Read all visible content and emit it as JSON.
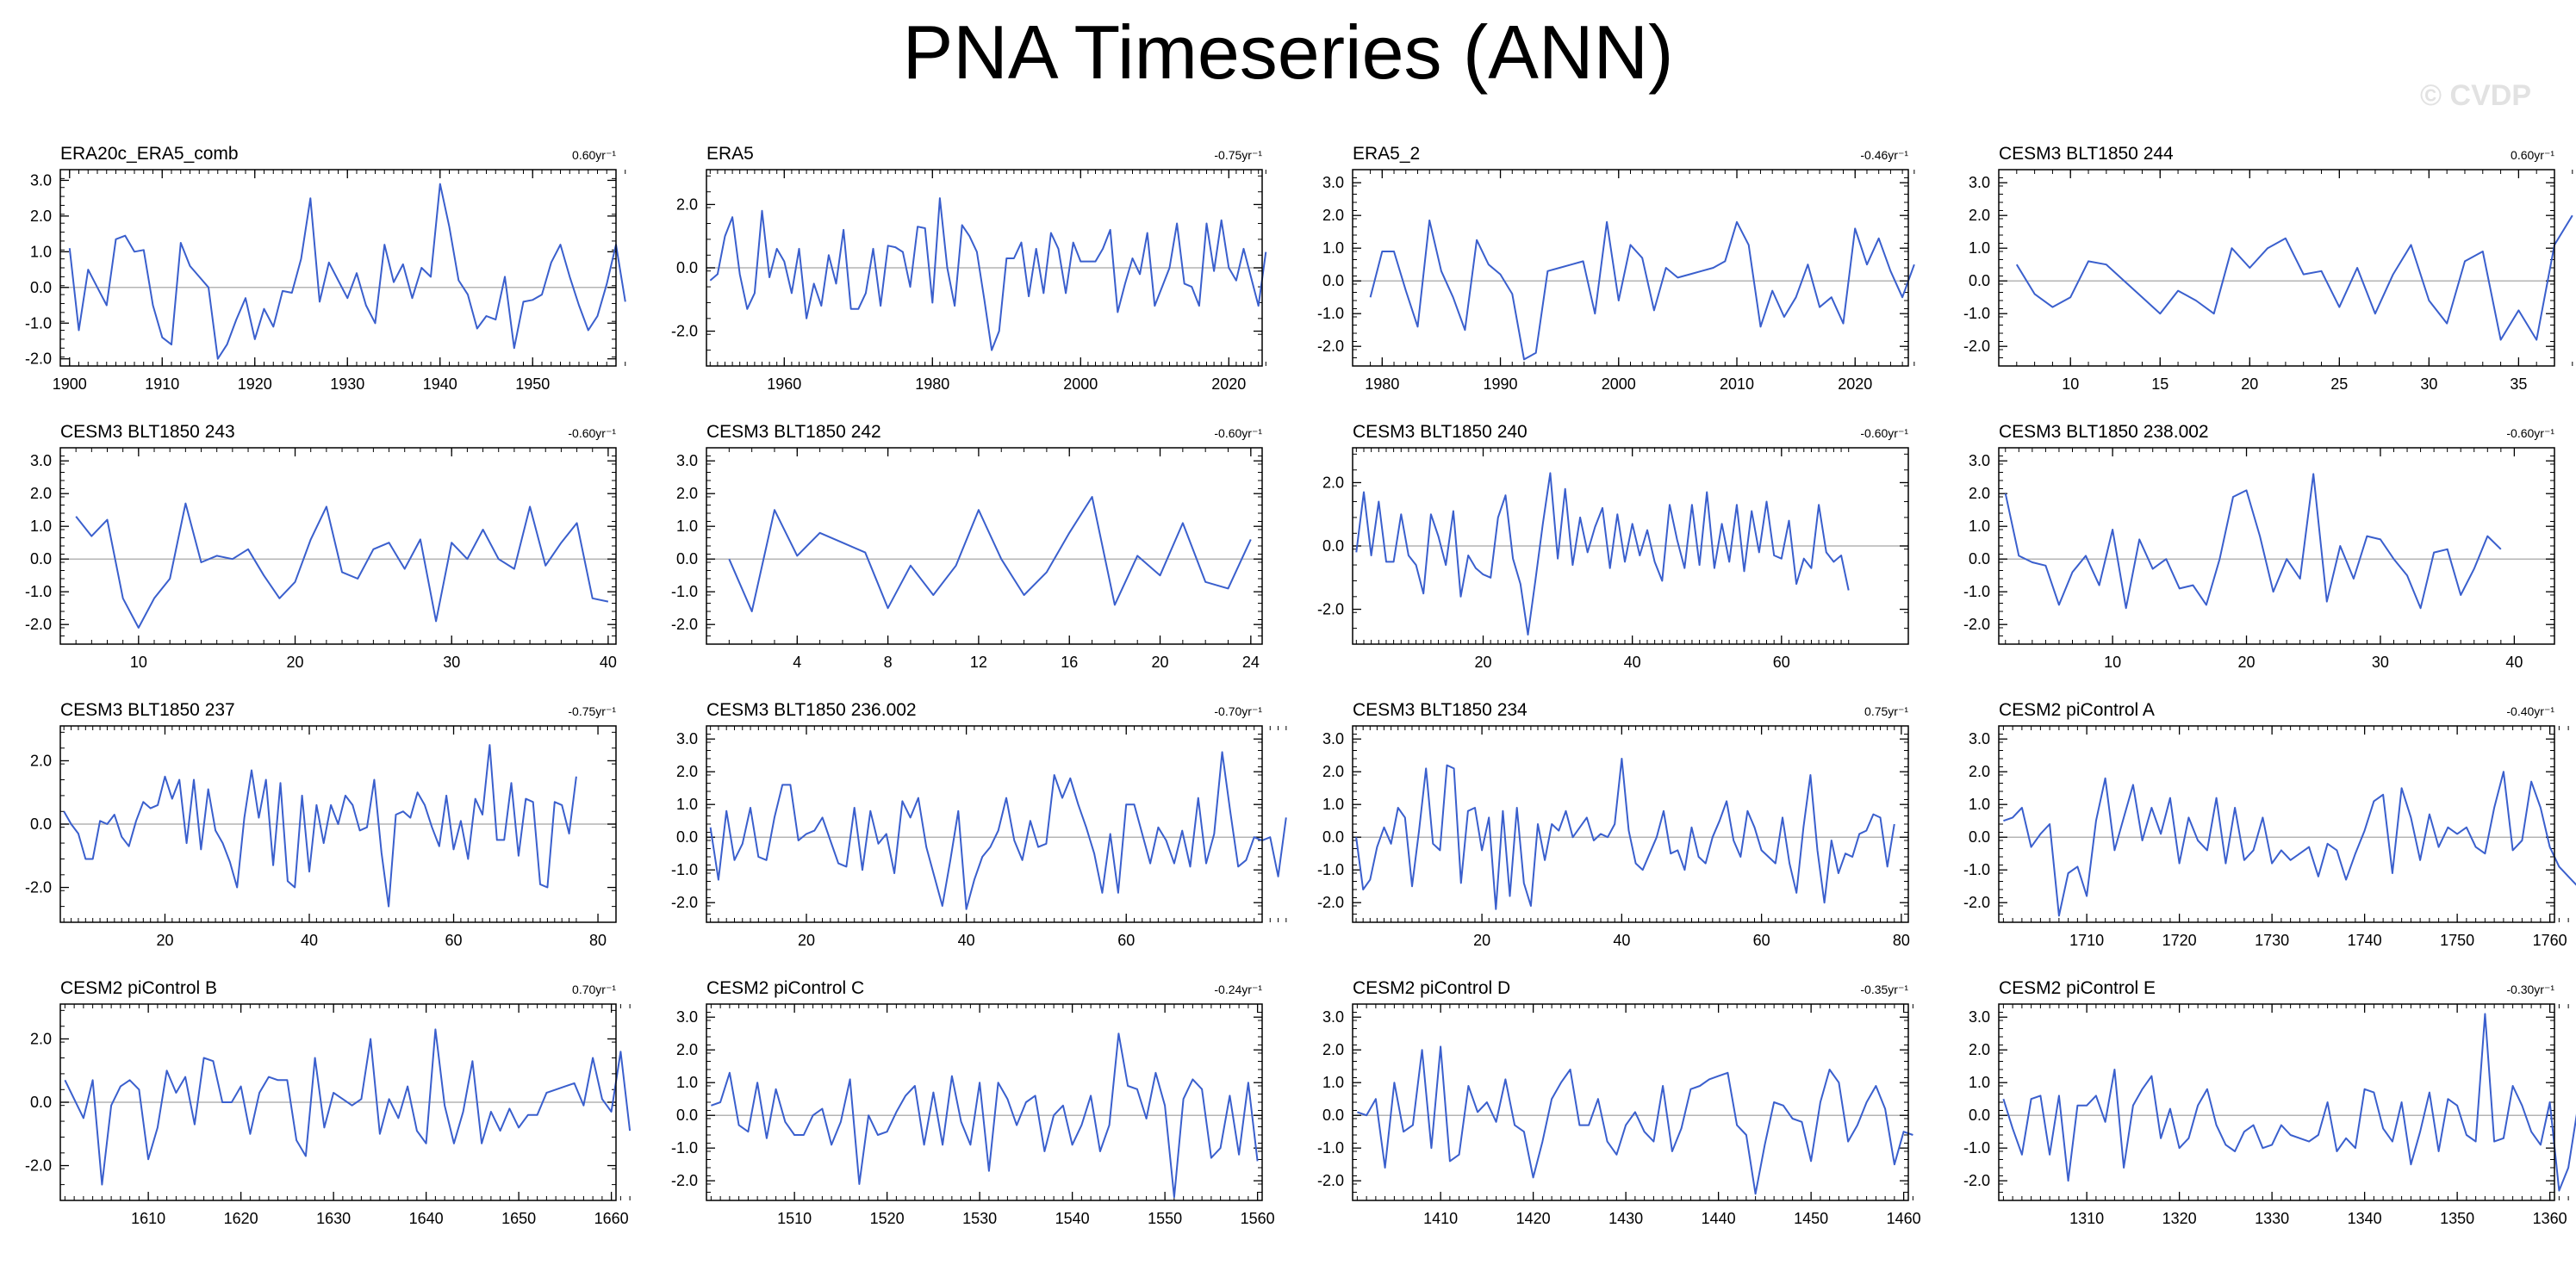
{
  "title": "PNA Timeseries (ANN)",
  "watermark": "© CVDP",
  "colors": {
    "line": "#3a5fcd",
    "zero": "#b4b4b4",
    "axis": "#000000",
    "text": "#000000",
    "watermark": "#e2e2e2"
  },
  "chart_data": [
    {
      "type": "line",
      "title": "ERA20c_ERA5_comb",
      "trend_label": "0.60yr⁻¹",
      "x_start": 1900,
      "x_step": 1,
      "xlim": [
        1899,
        1959
      ],
      "xticks": [
        1900,
        1910,
        1920,
        1930,
        1940,
        1950
      ],
      "ylim": [
        -2.2,
        3.3
      ],
      "yticks": [
        3.0,
        2.0,
        1.0,
        0.0,
        -1.0,
        -2.0
      ],
      "values": [
        1.1,
        -1.2,
        0.5,
        0.0,
        -0.5,
        1.35,
        1.45,
        1.0,
        1.05,
        -0.5,
        -1.4,
        -1.6,
        1.25,
        0.6,
        0.3,
        0.0,
        -2.0,
        -1.6,
        -0.9,
        -0.3,
        -1.45,
        -0.6,
        -1.1,
        -0.1,
        -0.15,
        0.8,
        2.5,
        -0.4,
        0.7,
        0.2,
        -0.3,
        0.4,
        -0.5,
        -1.0,
        1.2,
        0.15,
        0.65,
        -0.3,
        0.55,
        0.3,
        2.9,
        1.7,
        0.2,
        -0.2,
        -1.15,
        -0.8,
        -0.9,
        0.3,
        -1.7,
        -0.4,
        -0.35,
        -0.2,
        0.7,
        1.2,
        0.3,
        -0.5,
        -1.2,
        -0.8,
        0.1,
        1.2,
        -0.4
      ]
    },
    {
      "type": "line",
      "title": "ERA5",
      "trend_label": "-0.75yr⁻¹",
      "x_start": 1950,
      "x_step": 1,
      "xlim": [
        1949.5,
        2024.5
      ],
      "xticks": [
        1960,
        1980,
        2000,
        2020
      ],
      "ylim": [
        -3.1,
        3.1
      ],
      "yticks": [
        2.0,
        0.0,
        -2.0
      ],
      "values": [
        -0.4,
        -0.2,
        1.0,
        1.6,
        -0.2,
        -1.3,
        -0.8,
        1.8,
        -0.3,
        0.6,
        0.2,
        -0.8,
        0.6,
        -1.6,
        -0.5,
        -1.2,
        0.4,
        -0.5,
        1.2,
        -1.3,
        -1.3,
        -0.8,
        0.6,
        -1.2,
        0.7,
        0.65,
        0.5,
        -0.6,
        1.3,
        1.25,
        -1.1,
        2.2,
        0.0,
        -1.2,
        1.35,
        1.0,
        0.5,
        -1.0,
        -2.6,
        -2.0,
        0.3,
        0.3,
        0.8,
        -0.9,
        0.6,
        -0.8,
        1.1,
        0.6,
        -0.8,
        0.8,
        0.2,
        0.2,
        0.2,
        0.6,
        1.2,
        -1.4,
        -0.5,
        0.3,
        -0.2,
        1.1,
        -1.2,
        -0.6,
        0.0,
        1.4,
        -0.5,
        -0.6,
        -1.2,
        1.4,
        -0.1,
        1.5,
        0.0,
        -0.4,
        0.6,
        -0.3,
        -1.2,
        0.5
      ]
    },
    {
      "type": "line",
      "title": "ERA5_2",
      "trend_label": "-0.46yr⁻¹",
      "x_start": 1979,
      "x_step": 1,
      "xlim": [
        1977.5,
        2024.5
      ],
      "xticks": [
        1980,
        1990,
        2000,
        2010,
        2020
      ],
      "ylim": [
        -2.6,
        3.4
      ],
      "yticks": [
        3.0,
        2.0,
        1.0,
        0.0,
        -1.0,
        -2.0
      ],
      "values": [
        -0.5,
        0.9,
        0.9,
        -0.3,
        -1.4,
        1.85,
        0.3,
        -0.5,
        -1.5,
        1.25,
        0.5,
        0.2,
        -0.4,
        -2.4,
        -2.2,
        0.3,
        0.4,
        0.5,
        0.6,
        -1.0,
        1.8,
        -0.6,
        1.1,
        0.7,
        -0.9,
        0.4,
        0.1,
        0.2,
        0.3,
        0.4,
        0.6,
        1.8,
        1.1,
        -1.4,
        -0.3,
        -1.1,
        -0.5,
        0.5,
        -0.8,
        -0.5,
        -1.3,
        1.6,
        0.5,
        1.3,
        0.3,
        -0.5,
        0.5
      ]
    },
    {
      "type": "line",
      "title": "CESM3 BLT1850 244",
      "trend_label": "0.60yr⁻¹",
      "x_start": 7,
      "x_step": 1,
      "xlim": [
        6,
        37
      ],
      "xticks": [
        10,
        15,
        20,
        25,
        30,
        35
      ],
      "ylim": [
        -2.6,
        3.4
      ],
      "yticks": [
        3.0,
        2.0,
        1.0,
        0.0,
        -1.0,
        -2.0
      ],
      "values": [
        0.5,
        -0.4,
        -0.8,
        -0.5,
        0.6,
        0.5,
        0.0,
        -0.5,
        -1.0,
        -0.3,
        -0.6,
        -1.0,
        1.0,
        0.4,
        1.0,
        1.3,
        0.2,
        0.3,
        -0.8,
        0.4,
        -1.0,
        0.2,
        1.1,
        -0.6,
        -1.3,
        0.6,
        0.9,
        -1.8,
        -0.9,
        -1.8,
        1.1,
        2.0
      ]
    },
    {
      "type": "line",
      "title": "CESM3 BLT1850 243",
      "trend_label": "-0.60yr⁻¹",
      "x_start": 6,
      "x_step": 1,
      "xlim": [
        5,
        40.5
      ],
      "xticks": [
        10,
        20,
        30,
        40
      ],
      "ylim": [
        -2.6,
        3.4
      ],
      "yticks": [
        3.0,
        2.0,
        1.0,
        0.0,
        -1.0,
        -2.0
      ],
      "values": [
        1.3,
        0.7,
        1.2,
        -1.2,
        -2.1,
        -1.2,
        -0.6,
        1.7,
        -0.1,
        0.1,
        0.0,
        0.3,
        -0.5,
        -1.2,
        -0.7,
        0.6,
        1.6,
        -0.4,
        -0.6,
        0.3,
        0.5,
        -0.3,
        0.6,
        -1.9,
        0.5,
        0.0,
        0.9,
        0.0,
        -0.3,
        1.6,
        -0.2,
        0.5,
        1.1,
        -1.2,
        -1.3
      ]
    },
    {
      "type": "line",
      "title": "CESM3 BLT1850 242",
      "trend_label": "-0.60yr⁻¹",
      "x_start": 1,
      "x_step": 1,
      "xlim": [
        0,
        24.5
      ],
      "xticks": [
        4,
        8,
        12,
        16,
        20,
        24
      ],
      "ylim": [
        -2.6,
        3.4
      ],
      "yticks": [
        3.0,
        2.0,
        1.0,
        0.0,
        -1.0,
        -2.0
      ],
      "values": [
        0.0,
        -1.6,
        1.5,
        0.1,
        0.8,
        0.5,
        0.2,
        -1.5,
        -0.2,
        -1.1,
        -0.2,
        1.5,
        0.0,
        -1.1,
        -0.4,
        0.8,
        1.9,
        -1.4,
        0.1,
        -0.5,
        1.1,
        -0.7,
        -0.9,
        0.6
      ]
    },
    {
      "type": "line",
      "title": "CESM3 BLT1850 240",
      "trend_label": "-0.60yr⁻¹",
      "x_start": 3,
      "x_step": 1,
      "xlim": [
        2.5,
        77
      ],
      "xticks": [
        20,
        40,
        60
      ],
      "ylim": [
        -3.1,
        3.1
      ],
      "yticks": [
        2.0,
        0.0,
        -2.0
      ],
      "values": [
        -0.2,
        1.7,
        -0.3,
        1.4,
        -0.5,
        -0.5,
        1.0,
        -0.3,
        -0.6,
        -1.5,
        1.0,
        0.3,
        -0.6,
        1.1,
        -1.6,
        -0.3,
        -0.7,
        -0.9,
        -1.0,
        0.9,
        1.6,
        -0.4,
        -1.2,
        -2.8,
        -1.1,
        0.7,
        2.3,
        -0.4,
        1.8,
        -0.6,
        0.9,
        -0.2,
        0.6,
        1.2,
        -0.7,
        1.0,
        -0.5,
        0.7,
        -0.3,
        0.5,
        -0.5,
        -1.1,
        1.3,
        0.2,
        -0.7,
        1.3,
        -0.6,
        1.7,
        -0.7,
        0.7,
        -0.5,
        1.3,
        -0.8,
        1.1,
        -0.2,
        1.4,
        -0.3,
        -0.4,
        0.8,
        -1.2,
        -0.4,
        -0.7,
        1.3,
        -0.2,
        -0.5,
        -0.3,
        -1.4
      ]
    },
    {
      "type": "line",
      "title": "CESM3 BLT1850 238.002",
      "trend_label": "-0.60yr⁻¹",
      "x_start": 2,
      "x_step": 1,
      "xlim": [
        1.5,
        43
      ],
      "xticks": [
        10,
        20,
        30,
        40
      ],
      "ylim": [
        -2.6,
        3.4
      ],
      "yticks": [
        3.0,
        2.0,
        1.0,
        0.0,
        -1.0,
        -2.0
      ],
      "values": [
        2.0,
        0.1,
        -0.1,
        -0.2,
        -1.4,
        -0.4,
        0.1,
        -0.8,
        0.9,
        -1.5,
        0.6,
        -0.3,
        0.0,
        -0.9,
        -0.8,
        -1.4,
        0.0,
        1.9,
        2.1,
        0.7,
        -1.0,
        0.0,
        -0.6,
        2.6,
        -1.3,
        0.4,
        -0.6,
        0.7,
        0.6,
        0.0,
        -0.5,
        -1.5,
        0.2,
        0.3,
        -1.1,
        -0.3,
        0.7,
        0.3
      ]
    },
    {
      "type": "line",
      "title": "CESM3 BLT1850 237",
      "trend_label": "-0.75yr⁻¹",
      "x_start": 6,
      "x_step": 1,
      "xlim": [
        5.5,
        82.5
      ],
      "xticks": [
        20,
        40,
        60,
        80
      ],
      "ylim": [
        -3.1,
        3.1
      ],
      "yticks": [
        2.0,
        0.0,
        -2.0
      ],
      "values": [
        0.4,
        0.0,
        -0.3,
        -1.1,
        -1.1,
        0.1,
        0.0,
        0.3,
        -0.4,
        -0.7,
        0.1,
        0.7,
        0.5,
        0.6,
        1.5,
        0.8,
        1.4,
        -0.6,
        1.4,
        -0.8,
        1.1,
        -0.2,
        -0.6,
        -1.2,
        -2.0,
        0.2,
        1.7,
        0.2,
        1.4,
        -1.3,
        1.3,
        -1.8,
        -2.0,
        0.9,
        -1.5,
        0.6,
        -0.6,
        0.6,
        0.0,
        0.9,
        0.6,
        -0.2,
        -0.1,
        1.4,
        -0.9,
        -2.6,
        0.3,
        0.4,
        0.2,
        1.0,
        0.6,
        -0.1,
        -0.7,
        0.9,
        -0.8,
        0.1,
        -1.1,
        0.8,
        0.3,
        2.5,
        -0.5,
        -0.5,
        1.3,
        -1.0,
        0.8,
        0.7,
        -1.9,
        -2.0,
        0.7,
        0.6,
        -0.3,
        1.5
      ]
    },
    {
      "type": "line",
      "title": "CESM3 BLT1850 236.002",
      "trend_label": "-0.70yr⁻¹",
      "x_start": 8,
      "x_step": 1,
      "xlim": [
        7.5,
        77
      ],
      "xticks": [
        20,
        40,
        60
      ],
      "ylim": [
        -2.6,
        3.4
      ],
      "yticks": [
        3.0,
        2.0,
        1.0,
        0.0,
        -1.0,
        -2.0
      ],
      "values": [
        0.3,
        -1.3,
        0.8,
        -0.7,
        -0.2,
        0.9,
        -0.6,
        -0.7,
        0.6,
        1.6,
        1.6,
        -0.1,
        0.1,
        0.2,
        0.6,
        -0.1,
        -0.8,
        -0.9,
        0.9,
        -1.0,
        0.8,
        -0.2,
        0.1,
        -1.1,
        1.1,
        0.6,
        1.2,
        -0.3,
        -1.2,
        -2.1,
        -0.7,
        0.8,
        -2.2,
        -1.3,
        -0.6,
        -0.3,
        0.2,
        1.2,
        -0.1,
        -0.7,
        0.5,
        -0.3,
        -0.2,
        1.9,
        1.2,
        1.8,
        1.0,
        0.3,
        -0.5,
        -1.7,
        0.1,
        -1.7,
        1.0,
        1.0,
        0.1,
        -0.8,
        0.3,
        -0.1,
        -0.8,
        0.2,
        -0.9,
        1.2,
        -0.8,
        0.1,
        2.6,
        0.8,
        -0.9,
        -0.7,
        0.0,
        -0.1,
        0.0,
        -1.2,
        0.6
      ]
    },
    {
      "type": "line",
      "title": "CESM3 BLT1850 234",
      "trend_label": "0.75yr⁻¹",
      "x_start": 2,
      "x_step": 1,
      "xlim": [
        1.5,
        81
      ],
      "xticks": [
        20,
        40,
        60,
        80
      ],
      "ylim": [
        -2.6,
        3.4
      ],
      "yticks": [
        3.0,
        2.0,
        1.0,
        0.0,
        -1.0,
        -2.0
      ],
      "values": [
        0.0,
        -1.6,
        -1.3,
        -0.3,
        0.3,
        -0.2,
        0.9,
        0.6,
        -1.5,
        0.2,
        2.1,
        -0.2,
        -0.4,
        2.2,
        2.1,
        -1.4,
        0.8,
        0.9,
        -0.4,
        0.6,
        -2.2,
        0.8,
        -1.8,
        0.9,
        -1.4,
        -2.1,
        0.4,
        -0.7,
        0.4,
        0.2,
        0.8,
        0.0,
        0.3,
        0.6,
        -0.1,
        0.1,
        0.0,
        0.4,
        2.4,
        0.2,
        -0.8,
        -1.0,
        -0.5,
        0.0,
        0.8,
        -0.5,
        -0.4,
        -1.0,
        0.3,
        -0.6,
        -0.8,
        0.0,
        0.5,
        1.1,
        -0.1,
        -0.6,
        0.8,
        0.3,
        -0.4,
        -0.6,
        -0.8,
        0.6,
        -0.8,
        -1.7,
        0.3,
        1.9,
        -0.4,
        -2.0,
        -0.1,
        -1.1,
        -0.5,
        -0.6,
        0.1,
        0.2,
        0.7,
        0.6,
        -0.9,
        0.4
      ]
    },
    {
      "type": "line",
      "title": "CESM2 piControl A",
      "trend_label": "-0.40yr⁻¹",
      "x_start": 1701,
      "x_step": 1,
      "xlim": [
        1700.5,
        1760.5
      ],
      "xticks": [
        1710,
        1720,
        1730,
        1740,
        1750,
        1760
      ],
      "ylim": [
        -2.6,
        3.4
      ],
      "yticks": [
        3.0,
        2.0,
        1.0,
        0.0,
        -1.0,
        -2.0
      ],
      "values": [
        0.5,
        0.6,
        0.9,
        -0.3,
        0.1,
        0.4,
        -2.4,
        -1.1,
        -0.9,
        -1.8,
        0.5,
        1.8,
        -0.4,
        0.6,
        1.6,
        -0.1,
        0.9,
        0.1,
        1.2,
        -0.8,
        0.6,
        -0.1,
        -0.4,
        1.2,
        -0.8,
        0.9,
        -0.7,
        -0.4,
        0.6,
        -0.8,
        -0.4,
        -0.7,
        -0.5,
        -0.3,
        -1.2,
        -0.2,
        -0.4,
        -1.3,
        -0.5,
        0.2,
        1.1,
        1.3,
        -1.1,
        1.5,
        0.6,
        -0.7,
        0.7,
        -0.3,
        0.3,
        0.1,
        0.3,
        -0.3,
        -0.5,
        0.9,
        2.0,
        -0.4,
        -0.1,
        1.7,
        0.9,
        -0.3,
        -0.9,
        -1.2,
        -1.5
      ]
    },
    {
      "type": "line",
      "title": "CESM2 piControl B",
      "trend_label": "0.70yr⁻¹",
      "x_start": 1601,
      "x_step": 1,
      "xlim": [
        1600.5,
        1660.5
      ],
      "xticks": [
        1610,
        1620,
        1630,
        1640,
        1650,
        1660
      ],
      "ylim": [
        -3.1,
        3.1
      ],
      "yticks": [
        2.0,
        0.0,
        -2.0
      ],
      "values": [
        0.7,
        0.1,
        -0.5,
        0.7,
        -2.6,
        -0.1,
        0.5,
        0.7,
        0.4,
        -1.8,
        -0.8,
        1.0,
        0.3,
        0.8,
        -0.7,
        1.4,
        1.3,
        0.0,
        0.0,
        0.5,
        -1.0,
        0.3,
        0.8,
        0.7,
        0.7,
        -1.2,
        -1.7,
        1.4,
        -0.8,
        0.3,
        0.1,
        -0.1,
        0.1,
        2.0,
        -1.0,
        0.1,
        -0.5,
        0.5,
        -0.9,
        -1.3,
        2.3,
        -0.1,
        -1.3,
        -0.3,
        1.3,
        -1.3,
        -0.3,
        -0.9,
        -0.2,
        -0.8,
        -0.4,
        -0.4,
        0.3,
        0.4,
        0.5,
        0.6,
        -0.1,
        1.4,
        0.1,
        -0.3,
        1.6,
        -0.9
      ]
    },
    {
      "type": "line",
      "title": "CESM2 piControl C",
      "trend_label": "-0.24yr⁻¹",
      "x_start": 1501,
      "x_step": 1,
      "xlim": [
        1500.5,
        1560.5
      ],
      "xticks": [
        1510,
        1520,
        1530,
        1540,
        1550,
        1560
      ],
      "ylim": [
        -2.6,
        3.4
      ],
      "yticks": [
        3.0,
        2.0,
        1.0,
        0.0,
        -1.0,
        -2.0
      ],
      "values": [
        0.3,
        0.4,
        1.3,
        -0.3,
        -0.5,
        1.0,
        -0.7,
        0.8,
        -0.2,
        -0.6,
        -0.6,
        0.0,
        0.2,
        -0.9,
        -0.2,
        1.1,
        -2.1,
        0.0,
        -0.6,
        -0.5,
        0.1,
        0.6,
        0.9,
        -0.9,
        0.7,
        -0.9,
        1.2,
        -0.2,
        -0.9,
        1.0,
        -1.7,
        1.0,
        0.5,
        -0.3,
        0.4,
        0.6,
        -1.1,
        0.0,
        0.3,
        -0.9,
        -0.3,
        0.6,
        -1.1,
        -0.3,
        2.5,
        0.9,
        0.8,
        -0.1,
        1.3,
        0.3,
        -2.5,
        0.5,
        1.1,
        0.8,
        -1.3,
        -1.0,
        0.6,
        -1.2,
        1.0,
        -1.4
      ]
    },
    {
      "type": "line",
      "title": "CESM2 piControl D",
      "trend_label": "-0.35yr⁻¹",
      "x_start": 1401,
      "x_step": 1,
      "xlim": [
        1400.5,
        1460.5
      ],
      "xticks": [
        1410,
        1420,
        1430,
        1440,
        1450,
        1460
      ],
      "ylim": [
        -2.6,
        3.4
      ],
      "yticks": [
        3.0,
        2.0,
        1.0,
        0.0,
        -1.0,
        -2.0
      ],
      "values": [
        0.1,
        0.0,
        0.5,
        -1.6,
        1.0,
        -0.5,
        -0.3,
        2.0,
        -1.0,
        2.1,
        -1.4,
        -1.2,
        0.9,
        0.1,
        0.4,
        -0.2,
        1.1,
        -0.3,
        -0.5,
        -1.9,
        -0.8,
        0.5,
        1.0,
        1.4,
        -0.3,
        -0.3,
        0.5,
        -0.8,
        -1.2,
        -0.3,
        0.1,
        -0.5,
        -0.8,
        0.9,
        -1.1,
        -0.4,
        0.8,
        0.9,
        1.1,
        1.2,
        1.3,
        -0.3,
        -0.6,
        -2.4,
        -0.9,
        0.4,
        0.3,
        -0.1,
        -0.2,
        -1.4,
        0.4,
        1.4,
        1.0,
        -0.8,
        -0.3,
        0.4,
        0.9,
        0.2,
        -1.5,
        -0.5,
        -0.6
      ]
    },
    {
      "type": "line",
      "title": "CESM2 piControl E",
      "trend_label": "-0.30yr⁻¹",
      "x_start": 1301,
      "x_step": 1,
      "xlim": [
        1300.5,
        1360.5
      ],
      "xticks": [
        1310,
        1320,
        1330,
        1340,
        1350,
        1360
      ],
      "ylim": [
        -2.6,
        3.4
      ],
      "yticks": [
        3.0,
        2.0,
        1.0,
        0.0,
        -1.0,
        -2.0
      ],
      "values": [
        0.5,
        -0.4,
        -1.2,
        0.5,
        0.6,
        -1.2,
        0.6,
        -2.0,
        0.3,
        0.3,
        0.6,
        -0.2,
        1.4,
        -1.6,
        0.3,
        0.8,
        1.2,
        -0.7,
        0.2,
        -1.0,
        -0.7,
        0.3,
        0.8,
        -0.3,
        -0.9,
        -1.1,
        -0.5,
        -0.3,
        -1.0,
        -0.9,
        -0.3,
        -0.6,
        -0.7,
        -0.8,
        -0.6,
        0.4,
        -1.1,
        -0.7,
        -1.0,
        0.8,
        0.7,
        -0.4,
        -0.8,
        0.4,
        -1.5,
        -0.5,
        0.7,
        -1.1,
        0.5,
        0.3,
        -0.6,
        -0.8,
        3.1,
        -0.8,
        -0.7,
        0.9,
        0.3,
        -0.5,
        -0.9,
        0.4,
        -2.3,
        -1.6,
        0.2,
        1.3
      ]
    }
  ]
}
